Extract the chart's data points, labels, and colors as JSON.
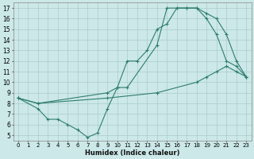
{
  "xlabel": "Humidex (Indice chaleur)",
  "bg_color": "#cce8e8",
  "line_color": "#2e7d6e",
  "grid_color": "#aacccc",
  "xlim": [
    -0.5,
    23.5
  ],
  "ylim": [
    4.5,
    17.5
  ],
  "xticks": [
    0,
    1,
    2,
    3,
    4,
    5,
    6,
    7,
    8,
    9,
    10,
    11,
    12,
    13,
    14,
    15,
    16,
    17,
    18,
    19,
    20,
    21,
    22,
    23
  ],
  "yticks": [
    5,
    6,
    7,
    8,
    9,
    10,
    11,
    12,
    13,
    14,
    15,
    16,
    17
  ],
  "line1": {
    "x": [
      0,
      2,
      3,
      4,
      5,
      6,
      7,
      8,
      9,
      10,
      11,
      12,
      13,
      14,
      15,
      16,
      17,
      18,
      19,
      20,
      21,
      22,
      23
    ],
    "y": [
      8.5,
      7.5,
      6.5,
      6.5,
      6.0,
      5.5,
      4.8,
      5.2,
      7.5,
      9.5,
      12.0,
      12.0,
      13.0,
      15.0,
      15.5,
      17.0,
      17.0,
      17.0,
      16.0,
      14.5,
      12.0,
      11.5,
      10.5
    ]
  },
  "line2": {
    "x": [
      0,
      2,
      9,
      10,
      11,
      14,
      15,
      16,
      17,
      18,
      19,
      20,
      21,
      22,
      23
    ],
    "y": [
      8.5,
      8.0,
      9.0,
      9.5,
      9.5,
      13.5,
      17.0,
      17.0,
      17.0,
      17.0,
      16.5,
      16.0,
      14.5,
      12.0,
      10.5
    ]
  },
  "line3": {
    "x": [
      0,
      2,
      9,
      14,
      18,
      19,
      20,
      21,
      22,
      23
    ],
    "y": [
      8.5,
      8.0,
      8.5,
      9.0,
      10.0,
      10.5,
      11.0,
      11.5,
      11.0,
      10.5
    ]
  }
}
